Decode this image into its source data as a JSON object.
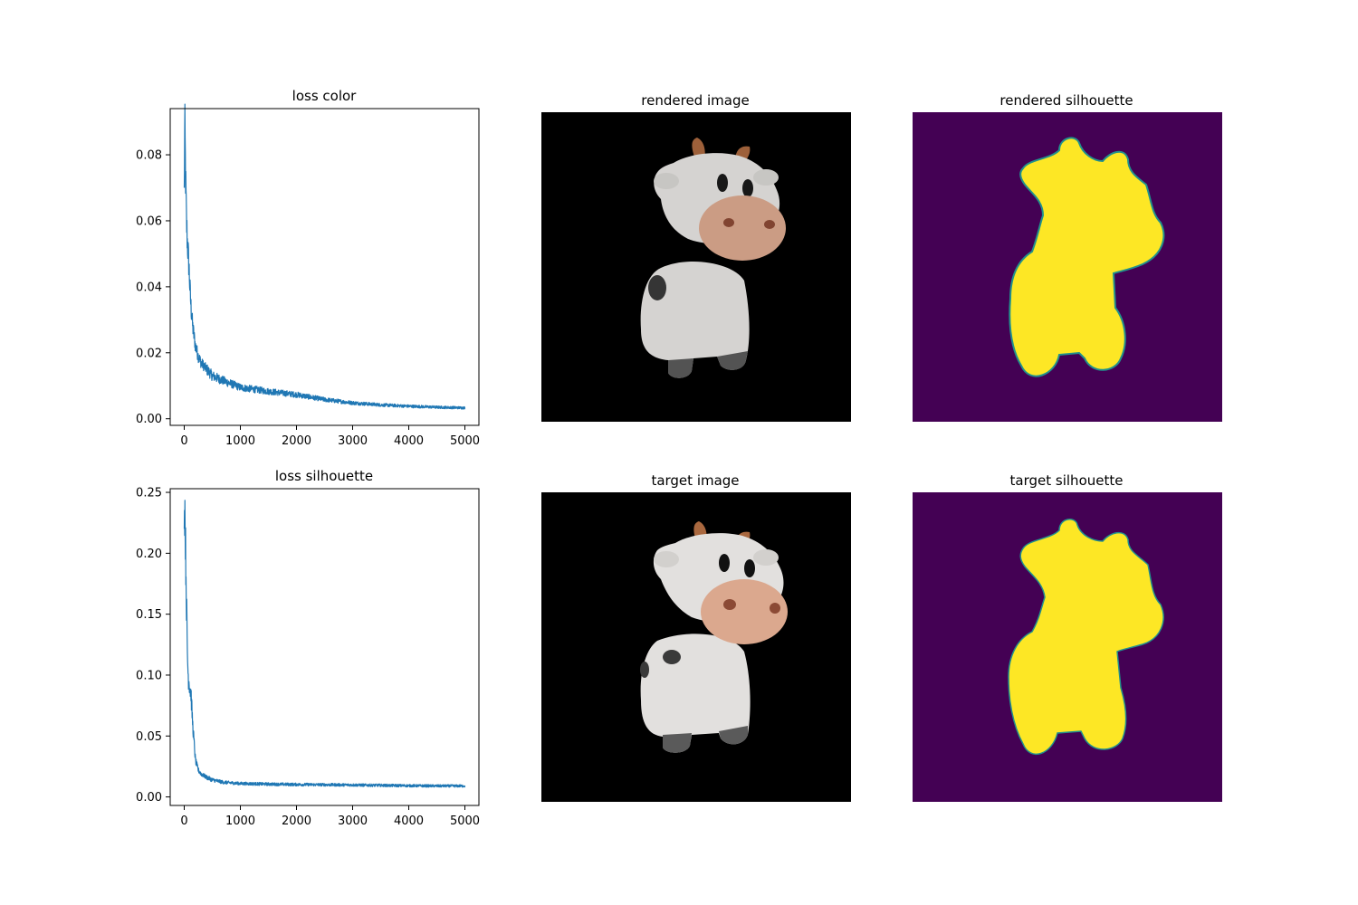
{
  "chart_data": [
    {
      "type": "line",
      "title": "loss color",
      "xlabel": "",
      "ylabel": "",
      "xlim": [
        -250,
        5250
      ],
      "ylim": [
        -0.002,
        0.094
      ],
      "x_ticks": [
        0,
        1000,
        2000,
        3000,
        4000,
        5000
      ],
      "x_tick_labels": [
        "0",
        "1000",
        "2000",
        "3000",
        "4000",
        "5000"
      ],
      "y_ticks": [
        0.0,
        0.02,
        0.04,
        0.06,
        0.08
      ],
      "y_tick_labels": [
        "0.00",
        "0.02",
        "0.04",
        "0.06",
        "0.08"
      ],
      "grid": false,
      "color": "#1f77b4",
      "series": [
        {
          "x": [
            0,
            10,
            25,
            40,
            55,
            70,
            85,
            100,
            120,
            150,
            200,
            250,
            300,
            400,
            500,
            700,
            1000,
            1500,
            2000,
            2500,
            3000,
            3500,
            4000,
            4500,
            5000
          ],
          "y": [
            0.07,
            0.089,
            0.072,
            0.06,
            0.054,
            0.05,
            0.046,
            0.04,
            0.034,
            0.028,
            0.022,
            0.019,
            0.017,
            0.015,
            0.013,
            0.0115,
            0.0095,
            0.0083,
            0.0073,
            0.0058,
            0.0048,
            0.0042,
            0.0038,
            0.0035,
            0.0033
          ]
        }
      ]
    },
    {
      "type": "image",
      "title": "rendered image"
    },
    {
      "type": "image",
      "title": "rendered silhouette"
    },
    {
      "type": "line",
      "title": "loss silhouette",
      "xlabel": "",
      "ylabel": "",
      "xlim": [
        -250,
        5250
      ],
      "ylim": [
        -0.007,
        0.253
      ],
      "x_ticks": [
        0,
        1000,
        2000,
        3000,
        4000,
        5000
      ],
      "x_tick_labels": [
        "0",
        "1000",
        "2000",
        "3000",
        "4000",
        "5000"
      ],
      "y_ticks": [
        0.0,
        0.05,
        0.1,
        0.15,
        0.2,
        0.25
      ],
      "y_tick_labels": [
        "0.00",
        "0.05",
        "0.10",
        "0.15",
        "0.20",
        "0.25"
      ],
      "grid": false,
      "color": "#1f77b4",
      "series": [
        {
          "x": [
            0,
            10,
            25,
            40,
            55,
            70,
            85,
            100,
            120,
            150,
            200,
            250,
            300,
            400,
            500,
            700,
            1000,
            1500,
            2000,
            2500,
            3000,
            3500,
            4000,
            4500,
            5000
          ],
          "y": [
            0.22,
            0.242,
            0.2,
            0.16,
            0.12,
            0.1,
            0.095,
            0.09,
            0.085,
            0.06,
            0.03,
            0.022,
            0.019,
            0.016,
            0.014,
            0.012,
            0.011,
            0.0105,
            0.0102,
            0.01,
            0.0098,
            0.0095,
            0.0092,
            0.009,
            0.009
          ]
        }
      ]
    },
    {
      "type": "image",
      "title": "target image"
    },
    {
      "type": "image",
      "title": "target silhouette"
    }
  ],
  "colors": {
    "line": "#1f77b4",
    "image_background": "#000000",
    "silhouette_background": "#440154",
    "silhouette_fill": "#fde725",
    "silhouette_edge": "#21918c",
    "cow_body": "#e6e4e1",
    "cow_face_shade": "#c9c6c4",
    "cow_muzzle": "#dba88e",
    "cow_nostril": "#8b4a35",
    "cow_horn": "#a9683f",
    "cow_spot": "#3a3a3a",
    "cow_hoof": "#5a5a5a"
  }
}
